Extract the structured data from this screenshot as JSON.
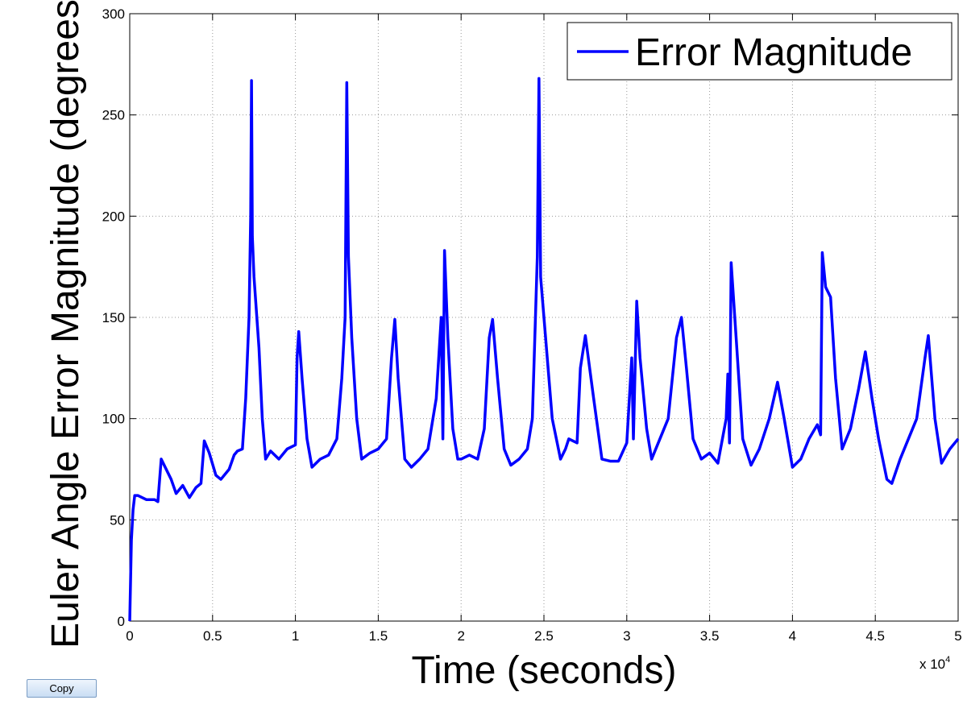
{
  "chart_data": {
    "type": "line",
    "x_label": "Time (seconds)",
    "y_label": "Euler Angle Error Magnitude (degrees)",
    "x_exponent_base": "x 10",
    "x_exponent": "4",
    "xlim": [
      0,
      5
    ],
    "ylim": [
      0,
      300
    ],
    "xticks": [
      0,
      0.5,
      1,
      1.5,
      2,
      2.5,
      3,
      3.5,
      4,
      4.5,
      5
    ],
    "yticks": [
      0,
      50,
      100,
      150,
      200,
      250,
      300
    ],
    "grid": true,
    "legend": "upper right",
    "x": [
      0,
      0.01,
      0.02,
      0.03,
      0.05,
      0.1,
      0.15,
      0.17,
      0.19,
      0.25,
      0.28,
      0.32,
      0.36,
      0.4,
      0.43,
      0.45,
      0.48,
      0.52,
      0.55,
      0.6,
      0.63,
      0.65,
      0.68,
      0.7,
      0.72,
      0.73,
      0.735,
      0.74,
      0.75,
      0.78,
      0.8,
      0.82,
      0.85,
      0.9,
      0.95,
      1.0,
      1.01,
      1.02,
      1.04,
      1.07,
      1.1,
      1.15,
      1.2,
      1.25,
      1.28,
      1.3,
      1.31,
      1.32,
      1.34,
      1.37,
      1.4,
      1.45,
      1.5,
      1.55,
      1.58,
      1.6,
      1.62,
      1.66,
      1.7,
      1.75,
      1.8,
      1.85,
      1.88,
      1.89,
      1.9,
      1.92,
      1.95,
      1.98,
      2.0,
      2.05,
      2.1,
      2.14,
      2.17,
      2.19,
      2.22,
      2.26,
      2.3,
      2.35,
      2.4,
      2.43,
      2.46,
      2.47,
      2.48,
      2.5,
      2.55,
      2.6,
      2.63,
      2.65,
      2.7,
      2.72,
      2.75,
      2.8,
      2.85,
      2.9,
      2.95,
      3.0,
      3.03,
      3.04,
      3.06,
      3.08,
      3.12,
      3.15,
      3.2,
      3.25,
      3.3,
      3.33,
      3.36,
      3.4,
      3.45,
      3.5,
      3.55,
      3.6,
      3.61,
      3.62,
      3.63,
      3.66,
      3.7,
      3.75,
      3.8,
      3.86,
      3.91,
      3.95,
      4.0,
      4.05,
      4.1,
      4.15,
      4.17,
      4.18,
      4.2,
      4.23,
      4.26,
      4.3,
      4.35,
      4.4,
      4.44,
      4.48,
      4.52,
      4.57,
      4.6,
      4.65,
      4.7,
      4.75,
      4.8,
      4.82,
      4.86,
      4.9,
      4.95,
      5.0
    ],
    "series": [
      {
        "name": "Error Magnitude",
        "color": "#0000ff",
        "values": [
          0,
          40,
          55,
          62,
          62,
          60,
          60,
          59,
          80,
          70,
          63,
          67,
          61,
          66,
          68,
          89,
          83,
          72,
          70,
          75,
          82,
          84,
          85,
          110,
          150,
          200,
          267,
          190,
          170,
          135,
          100,
          80,
          84,
          80,
          85,
          87,
          130,
          143,
          120,
          90,
          76,
          80,
          82,
          90,
          120,
          150,
          266,
          180,
          140,
          100,
          80,
          83,
          85,
          90,
          130,
          149,
          120,
          80,
          76,
          80,
          85,
          110,
          150,
          90,
          183,
          140,
          95,
          80,
          80,
          82,
          80,
          95,
          140,
          149,
          120,
          85,
          77,
          80,
          85,
          100,
          180,
          268,
          170,
          150,
          100,
          80,
          85,
          90,
          88,
          125,
          141,
          110,
          80,
          79,
          79,
          88,
          130,
          90,
          158,
          130,
          95,
          80,
          90,
          100,
          140,
          150,
          125,
          90,
          80,
          83,
          78,
          100,
          122,
          88,
          177,
          140,
          90,
          77,
          85,
          100,
          118,
          100,
          76,
          80,
          90,
          97,
          92,
          182,
          165,
          160,
          120,
          85,
          95,
          115,
          133,
          110,
          90,
          70,
          68,
          80,
          90,
          100,
          130,
          141,
          100,
          78,
          85,
          90
        ]
      }
    ]
  },
  "copy_button": "Copy"
}
